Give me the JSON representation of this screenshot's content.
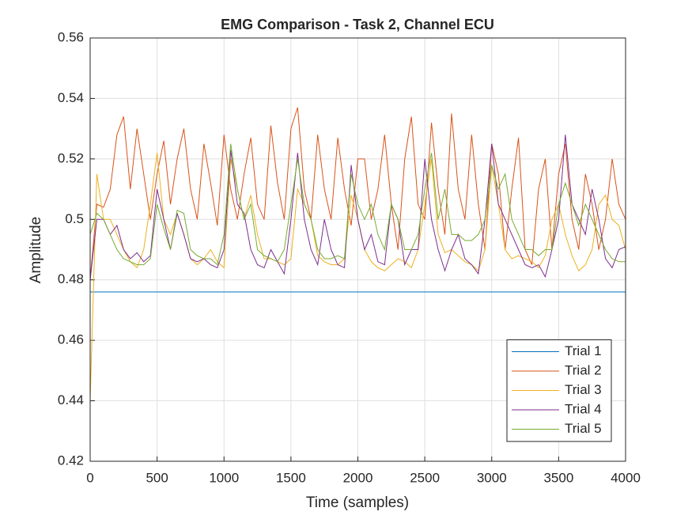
{
  "chart_data": {
    "type": "line",
    "title": "EMG Comparison - Task 2, Channel ECU",
    "xlabel": "Time (samples)",
    "ylabel": "Amplitude",
    "x": [
      0,
      50,
      100,
      150,
      200,
      250,
      300,
      350,
      400,
      450,
      500,
      550,
      600,
      650,
      700,
      750,
      800,
      850,
      900,
      950,
      1000,
      1050,
      1100,
      1150,
      1200,
      1250,
      1300,
      1350,
      1400,
      1450,
      1500,
      1550,
      1600,
      1650,
      1700,
      1750,
      1800,
      1850,
      1900,
      1950,
      2000,
      2050,
      2100,
      2150,
      2200,
      2250,
      2300,
      2350,
      2400,
      2450,
      2500,
      2550,
      2600,
      2650,
      2700,
      2750,
      2800,
      2850,
      2900,
      2950,
      3000,
      3050,
      3100,
      3150,
      3200,
      3250,
      3300,
      3350,
      3400,
      3450,
      3500,
      3550,
      3600,
      3650,
      3700,
      3750,
      3800,
      3850,
      3900,
      3950,
      4000
    ],
    "series": [
      {
        "name": "Trial 1",
        "color": "#0072BD",
        "values": [
          0.476,
          0.476,
          0.476,
          0.476,
          0.476,
          0.476,
          0.476,
          0.476,
          0.476,
          0.476,
          0.476,
          0.476,
          0.476,
          0.476,
          0.476,
          0.476,
          0.476,
          0.476,
          0.476,
          0.476,
          0.476,
          0.476,
          0.476,
          0.476,
          0.476,
          0.476,
          0.476,
          0.476,
          0.476,
          0.476,
          0.476,
          0.476,
          0.476,
          0.476,
          0.476,
          0.476,
          0.476,
          0.476,
          0.476,
          0.476,
          0.476,
          0.476,
          0.476,
          0.476,
          0.476,
          0.476,
          0.476,
          0.476,
          0.476,
          0.476,
          0.476,
          0.476,
          0.476,
          0.476,
          0.476,
          0.476,
          0.476,
          0.476,
          0.476,
          0.476,
          0.476,
          0.476,
          0.476,
          0.476,
          0.476,
          0.476,
          0.476,
          0.476,
          0.476,
          0.476,
          0.476,
          0.476,
          0.476,
          0.476,
          0.476,
          0.476,
          0.476,
          0.476,
          0.476,
          0.476,
          0.476
        ]
      },
      {
        "name": "Trial 2",
        "color": "#D95319",
        "values": [
          0.48,
          0.505,
          0.504,
          0.51,
          0.528,
          0.534,
          0.51,
          0.53,
          0.515,
          0.5,
          0.515,
          0.526,
          0.505,
          0.52,
          0.53,
          0.51,
          0.5,
          0.525,
          0.512,
          0.498,
          0.528,
          0.51,
          0.5,
          0.515,
          0.527,
          0.505,
          0.5,
          0.531,
          0.512,
          0.5,
          0.53,
          0.537,
          0.51,
          0.5,
          0.528,
          0.51,
          0.5,
          0.527,
          0.51,
          0.498,
          0.52,
          0.52,
          0.5,
          0.51,
          0.528,
          0.505,
          0.49,
          0.52,
          0.534,
          0.505,
          0.5,
          0.532,
          0.51,
          0.495,
          0.535,
          0.51,
          0.5,
          0.528,
          0.505,
          0.49,
          0.525,
          0.515,
          0.49,
          0.51,
          0.527,
          0.49,
          0.485,
          0.51,
          0.52,
          0.49,
          0.515,
          0.525,
          0.5,
          0.49,
          0.515,
          0.505,
          0.49,
          0.5,
          0.52,
          0.505,
          0.5
        ]
      },
      {
        "name": "Trial 3",
        "color": "#EDB120",
        "values": [
          0.44,
          0.515,
          0.5,
          0.5,
          0.495,
          0.49,
          0.486,
          0.484,
          0.49,
          0.505,
          0.522,
          0.5,
          0.495,
          0.502,
          0.495,
          0.487,
          0.485,
          0.487,
          0.49,
          0.486,
          0.484,
          0.52,
          0.51,
          0.5,
          0.508,
          0.495,
          0.487,
          0.487,
          0.486,
          0.485,
          0.487,
          0.51,
          0.505,
          0.5,
          0.488,
          0.486,
          0.485,
          0.485,
          0.487,
          0.508,
          0.5,
          0.49,
          0.486,
          0.484,
          0.483,
          0.485,
          0.487,
          0.486,
          0.484,
          0.49,
          0.505,
          0.52,
          0.495,
          0.489,
          0.49,
          0.488,
          0.486,
          0.485,
          0.483,
          0.49,
          0.518,
          0.505,
          0.49,
          0.487,
          0.488,
          0.487,
          0.486,
          0.484,
          0.488,
          0.5,
          0.505,
          0.495,
          0.488,
          0.483,
          0.485,
          0.49,
          0.505,
          0.508,
          0.5,
          0.498,
          0.49
        ]
      },
      {
        "name": "Trial 4",
        "color": "#7E2F8E",
        "values": [
          0.48,
          0.5,
          0.5,
          0.495,
          0.498,
          0.49,
          0.487,
          0.489,
          0.486,
          0.488,
          0.51,
          0.5,
          0.49,
          0.502,
          0.495,
          0.487,
          0.486,
          0.487,
          0.485,
          0.484,
          0.49,
          0.523,
          0.505,
          0.502,
          0.49,
          0.485,
          0.484,
          0.49,
          0.486,
          0.482,
          0.5,
          0.522,
          0.5,
          0.49,
          0.485,
          0.5,
          0.49,
          0.485,
          0.484,
          0.518,
          0.5,
          0.49,
          0.495,
          0.486,
          0.485,
          0.505,
          0.5,
          0.485,
          0.49,
          0.49,
          0.52,
          0.5,
          0.49,
          0.483,
          0.49,
          0.495,
          0.487,
          0.485,
          0.482,
          0.5,
          0.525,
          0.505,
          0.5,
          0.495,
          0.49,
          0.485,
          0.484,
          0.485,
          0.481,
          0.49,
          0.5,
          0.528,
          0.505,
          0.5,
          0.495,
          0.51,
          0.5,
          0.487,
          0.484,
          0.49,
          0.491
        ]
      },
      {
        "name": "Trial 5",
        "color": "#77AC30",
        "values": [
          0.495,
          0.502,
          0.5,
          0.495,
          0.49,
          0.487,
          0.486,
          0.485,
          0.485,
          0.487,
          0.505,
          0.497,
          0.49,
          0.503,
          0.502,
          0.49,
          0.488,
          0.487,
          0.487,
          0.485,
          0.495,
          0.525,
          0.51,
          0.5,
          0.505,
          0.49,
          0.488,
          0.487,
          0.486,
          0.49,
          0.505,
          0.52,
          0.505,
          0.5,
          0.49,
          0.487,
          0.487,
          0.488,
          0.487,
          0.515,
          0.505,
          0.5,
          0.505,
          0.495,
          0.49,
          0.505,
          0.5,
          0.49,
          0.49,
          0.495,
          0.51,
          0.522,
          0.5,
          0.51,
          0.495,
          0.495,
          0.493,
          0.493,
          0.495,
          0.5,
          0.518,
          0.51,
          0.515,
          0.5,
          0.495,
          0.49,
          0.49,
          0.488,
          0.49,
          0.49,
          0.505,
          0.512,
          0.505,
          0.498,
          0.505,
          0.5,
          0.495,
          0.49,
          0.487,
          0.486,
          0.486
        ]
      }
    ],
    "xlim": [
      0,
      4000
    ],
    "xticks": [
      0,
      500,
      1000,
      1500,
      2000,
      2500,
      3000,
      3500,
      4000
    ],
    "ylim": [
      0.42,
      0.56
    ],
    "yticks": [
      0.42,
      0.44,
      0.46,
      0.48,
      0.5,
      0.52,
      0.54,
      0.56
    ],
    "grid": true,
    "legend": "southeast"
  }
}
